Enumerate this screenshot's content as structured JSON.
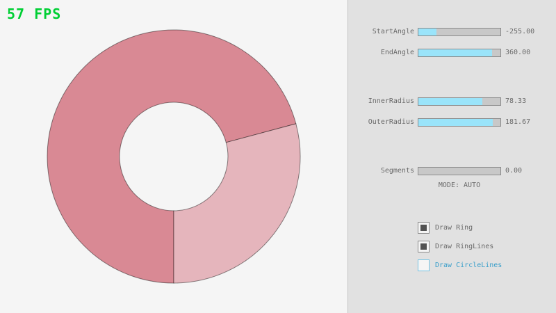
{
  "fps": {
    "text": "57 FPS"
  },
  "colors": {
    "background": "#f5f5f5",
    "panel_background": "#e1e1e1",
    "fps_green": "#00cf34",
    "ring_dark": "#d98994",
    "ring_light": "#e5b5bc",
    "ring_outline": "rgba(0,0,0,0.45)",
    "slider_fill": "#9ae4fa",
    "slider_track": "#c8c8c8",
    "slider_border": "#8a8a8a",
    "label_text": "#6a6a6a",
    "checkbox_checked_fill": "#525252",
    "focused_blue_border": "#74c3e4",
    "focused_blue_text": "#3a9fca"
  },
  "sliders": [
    {
      "label": "StartAngle",
      "value": "-255.00",
      "fill_pct": 22
    },
    {
      "label": "EndAngle",
      "value": "360.00",
      "fill_pct": 90
    },
    {
      "label": "InnerRadius",
      "value": "78.33",
      "fill_pct": 78
    },
    {
      "label": "OuterRadius",
      "value": "181.67",
      "fill_pct": 91
    },
    {
      "label": "Segments",
      "value": "0.00",
      "fill_pct": 0
    }
  ],
  "mode_text": "MODE: AUTO",
  "checkboxes": [
    {
      "label": "Draw Ring",
      "checked": true,
      "focused": false
    },
    {
      "label": "Draw RingLines",
      "checked": true,
      "focused": false
    },
    {
      "label": "Draw CircleLines",
      "checked": false,
      "focused": true
    }
  ],
  "ring": {
    "start_angle": "-255.00",
    "end_angle": "360.00",
    "inner_radius": "78.33",
    "outer_radius": "181.67",
    "segments": "0.00",
    "mode": "AUTO"
  }
}
